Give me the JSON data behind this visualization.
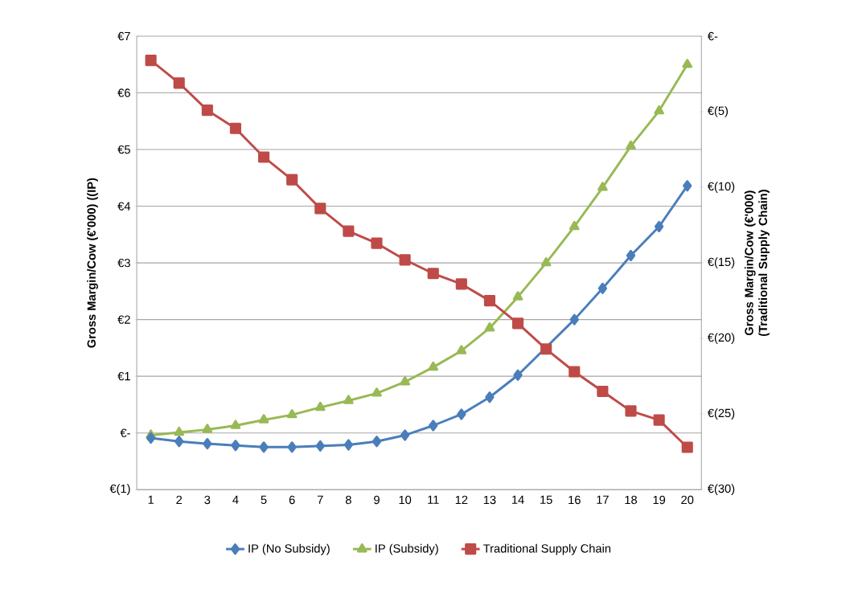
{
  "chart_data": {
    "type": "line",
    "ylabel": "Gross Margin/Cow  (€'000) ((IP)",
    "y2label": "Gross Margin/Cow (€'000) (Traditional Supply Chain)",
    "categories": [
      "1",
      "2",
      "3",
      "4",
      "5",
      "6",
      "7",
      "8",
      "9",
      "10",
      "11",
      "12",
      "13",
      "14",
      "15",
      "16",
      "17",
      "18",
      "19",
      "20"
    ],
    "series": [
      {
        "name": "IP (No Subsidy)",
        "color": "#4a7ebb",
        "marker": "diamond",
        "values": [
          -0.09,
          -0.15,
          -0.19,
          -0.22,
          -0.25,
          -0.25,
          -0.23,
          -0.21,
          -0.15,
          -0.04,
          0.13,
          0.33,
          0.63,
          1.02,
          null,
          2.0,
          2.55,
          3.13,
          3.64,
          4.36
        ]
      },
      {
        "name": "IP (Subsidy)",
        "color": "#98b954",
        "marker": "triangle",
        "values": [
          -0.04,
          0.01,
          0.06,
          0.13,
          0.23,
          0.32,
          0.45,
          0.57,
          0.7,
          0.9,
          1.16,
          1.45,
          1.85,
          2.4,
          3.0,
          3.64,
          4.33,
          5.06,
          5.68,
          6.5
        ]
      },
      {
        "name": "Traditional Supply Chain",
        "color": "#be4b48",
        "marker": "square",
        "axis": "y2",
        "values": [
          -1.6,
          -3.1,
          -4.9,
          -6.1,
          -8.0,
          -9.5,
          -11.4,
          -12.9,
          -13.7,
          -14.8,
          -15.7,
          -16.4,
          -17.5,
          -19.0,
          -20.7,
          -22.2,
          -23.5,
          -24.8,
          -25.4,
          -27.2
        ]
      }
    ],
    "ylim": [
      -1,
      7
    ],
    "yticks": [
      {
        "value": -1,
        "label": "€(1)"
      },
      {
        "value": 0,
        "label": "€-"
      },
      {
        "value": 1,
        "label": "€1"
      },
      {
        "value": 2,
        "label": "€2"
      },
      {
        "value": 3,
        "label": "€3"
      },
      {
        "value": 4,
        "label": "€4"
      },
      {
        "value": 5,
        "label": "€5"
      },
      {
        "value": 6,
        "label": "€6"
      },
      {
        "value": 7,
        "label": "€7"
      }
    ],
    "y2lim": [
      -30,
      0
    ],
    "y2ticks": [
      {
        "value": -30,
        "label": "€(30)"
      },
      {
        "value": -25,
        "label": "€(25)"
      },
      {
        "value": -20,
        "label": "€(20)"
      },
      {
        "value": -15,
        "label": "€(15)"
      },
      {
        "value": -10,
        "label": "€(10)"
      },
      {
        "value": -5,
        "label": "€(5)"
      },
      {
        "value": 0,
        "label": "€-"
      }
    ],
    "grid": "y",
    "legend": "bottom",
    "line_style": "solid"
  }
}
